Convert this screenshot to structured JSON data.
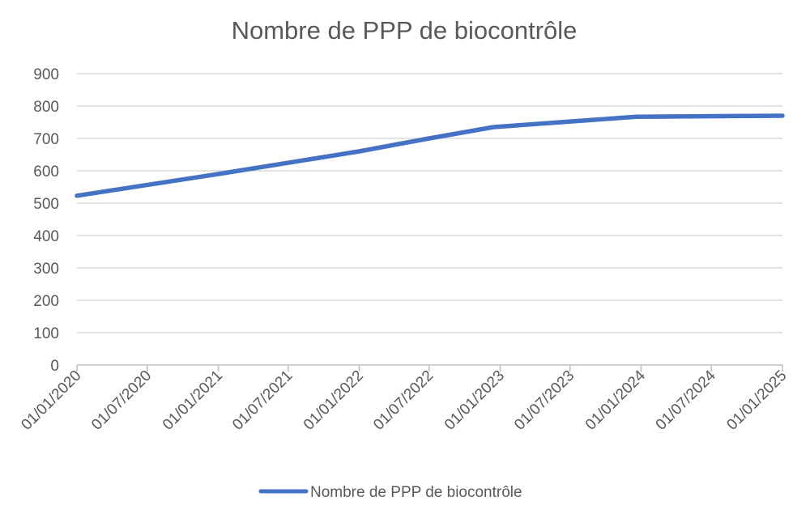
{
  "colors": {
    "series": "#4472C4",
    "grid": "#D9D9D9",
    "axis": "#BFBFBF",
    "text": "#595959"
  },
  "chart_data": {
    "type": "line",
    "title": "Nombre de PPP de biocontrôle",
    "xlabel": "",
    "ylabel": "",
    "ylim": [
      0,
      900
    ],
    "yticks": [
      "0",
      "100",
      "200",
      "300",
      "400",
      "500",
      "600",
      "700",
      "800",
      "900"
    ],
    "xticks": [
      "01/01/2020",
      "01/07/2020",
      "01/01/2021",
      "01/07/2021",
      "01/01/2022",
      "01/07/2022",
      "01/01/2023",
      "01/07/2023",
      "01/01/2024",
      "01/07/2024",
      "01/01/2025"
    ],
    "grid": true,
    "legend_position": "bottom",
    "series": [
      {
        "name": "Nombre de PPP de biocontrôle",
        "x": [
          "01/01/2020",
          "01/01/2021",
          "01/01/2022",
          "01/07/2022",
          "15/12/2022",
          "20/12/2023",
          "01/01/2025"
        ],
        "values": [
          523,
          590,
          660,
          700,
          735,
          767,
          770
        ]
      }
    ]
  }
}
